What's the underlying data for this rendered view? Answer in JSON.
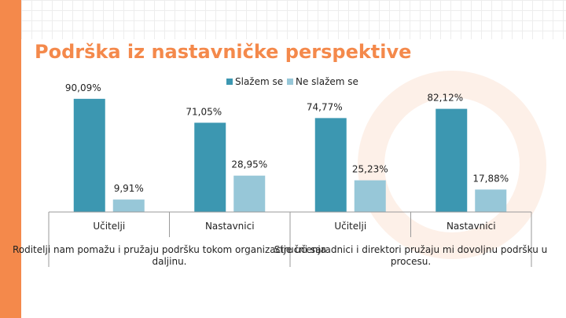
{
  "slide": {
    "title": "Podrška iz nastavničke perspektive"
  },
  "colors": {
    "accent": "#f4894b",
    "series_agree": "#3c97b1",
    "series_disagree": "#97c7d8"
  },
  "chart_data": {
    "type": "bar",
    "x_groups": [
      {
        "label": "Roditelji nam pomažu i pružaju podršku tokom organizacije učenja na daljinu.",
        "categories": [
          "Učitelji",
          "Nastavnici"
        ]
      },
      {
        "label": "Stručni saradnici i direktori pružaju mi dovoljnu podršku u ovom procesu.",
        "categories": [
          "Učitelji",
          "Nastavnici"
        ]
      }
    ],
    "categories": [
      "Učitelji",
      "Nastavnici",
      "Učitelji",
      "Nastavnici"
    ],
    "series": [
      {
        "name": "Slažem se",
        "values": [
          90.09,
          71.05,
          74.77,
          82.12
        ],
        "labels": [
          "90,09%",
          "71,05%",
          "74,77%",
          "82,12%"
        ]
      },
      {
        "name": "Ne slažem se",
        "values": [
          9.91,
          28.95,
          25.23,
          17.88
        ],
        "labels": [
          "9,91%",
          "28,95%",
          "25,23%",
          "17,88%"
        ]
      }
    ],
    "ylim": [
      0,
      100
    ],
    "grid": false,
    "legend_position": "top"
  }
}
